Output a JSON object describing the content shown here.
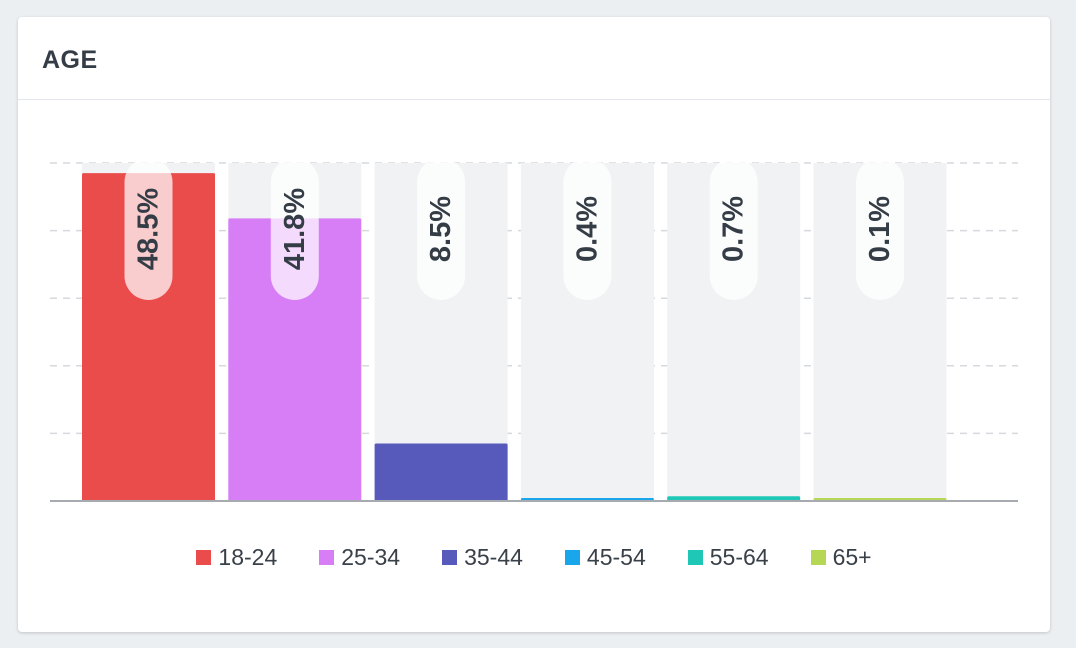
{
  "card": {
    "title": "AGE"
  },
  "chart_data": {
    "type": "bar",
    "title": "AGE",
    "categories": [
      "18-24",
      "25-34",
      "35-44",
      "45-54",
      "55-64",
      "65+"
    ],
    "values": [
      48.5,
      41.8,
      8.5,
      0.4,
      0.7,
      0.1
    ],
    "value_labels": [
      "48.5%",
      "41.8%",
      "8.5%",
      "0.4%",
      "0.7%",
      "0.1%"
    ],
    "colors": [
      "#ea4c4c",
      "#d77ef7",
      "#5759bb",
      "#1aa6ea",
      "#1fc7b7",
      "#b5d755"
    ],
    "ylim": [
      0,
      50
    ],
    "grid": true,
    "legend": "bottom-center"
  }
}
